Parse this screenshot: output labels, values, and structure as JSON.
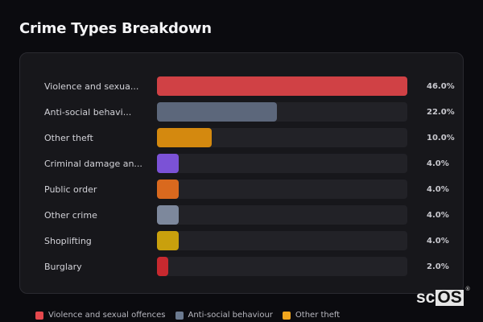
{
  "header": {
    "title": "Crime Types Breakdown"
  },
  "chart_data": {
    "type": "bar",
    "orientation": "horizontal",
    "title": "Crime Types Breakdown",
    "xlabel": "",
    "ylabel": "",
    "unit": "%",
    "xlim": [
      0,
      46
    ],
    "grid": false,
    "legend_position": "bottom",
    "categories": [
      "Violence and sexual offences",
      "Anti-social behaviour",
      "Other theft",
      "Criminal damage and arson",
      "Public order",
      "Other crime",
      "Shoplifting",
      "Burglary"
    ],
    "display_labels": [
      "Violence and sexua...",
      "Anti-social behavi...",
      "Other theft",
      "Criminal damage an...",
      "Public order",
      "Other crime",
      "Shoplifting",
      "Burglary"
    ],
    "values": [
      46.0,
      22.0,
      10.0,
      4.0,
      4.0,
      4.0,
      4.0,
      2.0
    ],
    "value_labels": [
      "46.0%",
      "22.0%",
      "10.0%",
      "4.0%",
      "4.0%",
      "4.0%",
      "4.0%",
      "2.0%"
    ],
    "colors": [
      "#d04145",
      "#5c677b",
      "#d4890f",
      "#7b52d6",
      "#d9691e",
      "#7d889c",
      "#c9a00d",
      "#c7292f"
    ]
  },
  "rows": [
    {
      "label": "Violence and sexua...",
      "value": "46.0%",
      "pct": 46.0,
      "color": "#d04145"
    },
    {
      "label": "Anti-social behavi...",
      "value": "22.0%",
      "pct": 22.0,
      "color": "#5c677b"
    },
    {
      "label": "Other theft",
      "value": "10.0%",
      "pct": 10.0,
      "color": "#d4890f"
    },
    {
      "label": "Criminal damage an...",
      "value": "4.0%",
      "pct": 4.0,
      "color": "#7b52d6"
    },
    {
      "label": "Public order",
      "value": "4.0%",
      "pct": 4.0,
      "color": "#d9691e"
    },
    {
      "label": "Other crime",
      "value": "4.0%",
      "pct": 4.0,
      "color": "#7d889c"
    },
    {
      "label": "Shoplifting",
      "value": "4.0%",
      "pct": 4.0,
      "color": "#c9a00d"
    },
    {
      "label": "Burglary",
      "value": "2.0%",
      "pct": 2.0,
      "color": "#c7292f"
    }
  ],
  "legend": [
    {
      "label": "Violence and sexual offences",
      "color": "#e5484d"
    },
    {
      "label": "Anti-social behaviour",
      "color": "#6b7a90"
    },
    {
      "label": "Other theft",
      "color": "#f0a51e"
    }
  ],
  "watermark": {
    "sc": "sc",
    "os": "OS",
    "reg": "®"
  }
}
